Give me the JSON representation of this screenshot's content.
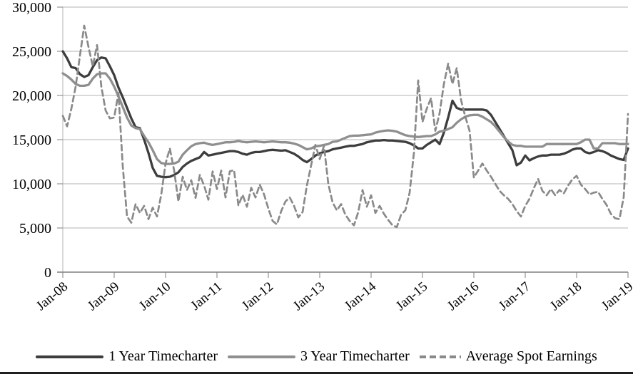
{
  "chart_data": {
    "type": "line",
    "title": "",
    "frequency": "monthly",
    "x_start_label": "Jan-08",
    "x_end_label": "Jan-19",
    "x_labels": [
      "Jan-08",
      "Jan-09",
      "Jan-10",
      "Jan-11",
      "Jan-12",
      "Jan-13",
      "Jan-14",
      "Jan-15",
      "Jan-16",
      "Jan-17",
      "Jan-18",
      "Jan-19"
    ],
    "y_tick_labels": [
      "30,000",
      "25,000",
      "20,000",
      "15,000",
      "10,000",
      "5,000",
      "0"
    ],
    "ylim": [
      0,
      30000
    ],
    "grid": true,
    "legend_position": "bottom",
    "colors": {
      "grid": "#b3b3b3",
      "axis": "#7f7f7f",
      "series_1y": "#3d3d3d",
      "series_3y": "#8f8f8f",
      "series_spot": "#8a8a8a"
    },
    "series": [
      {
        "name": "1 Year Timecharter",
        "style": "solid",
        "color": "#3d3d3d",
        "values": [
          25000,
          24200,
          23200,
          23100,
          22400,
          22100,
          22300,
          23200,
          24000,
          24300,
          24200,
          23300,
          22300,
          20900,
          19800,
          18600,
          17400,
          16400,
          16300,
          15000,
          13500,
          11800,
          10900,
          10800,
          10750,
          10800,
          11000,
          11300,
          11900,
          12300,
          12600,
          12800,
          13000,
          13600,
          13200,
          13300,
          13400,
          13500,
          13600,
          13700,
          13700,
          13600,
          13400,
          13300,
          13500,
          13600,
          13600,
          13700,
          13800,
          13850,
          13800,
          13750,
          13800,
          13600,
          13400,
          13100,
          12700,
          12450,
          12800,
          13200,
          13450,
          13600,
          13700,
          13900,
          14000,
          14100,
          14200,
          14300,
          14300,
          14400,
          14500,
          14700,
          14800,
          14900,
          14900,
          14950,
          14900,
          14900,
          14850,
          14800,
          14750,
          14600,
          14350,
          14000,
          14000,
          14400,
          14700,
          15000,
          14500,
          15800,
          17500,
          19400,
          18600,
          18400,
          18400,
          18400,
          18400,
          18400,
          18400,
          18300,
          17800,
          17000,
          16200,
          15400,
          14600,
          13800,
          12100,
          12400,
          13200,
          12650,
          12900,
          13100,
          13200,
          13200,
          13300,
          13300,
          13300,
          13400,
          13600,
          13870,
          14000,
          14000,
          13600,
          13450,
          13600,
          13800,
          13700,
          13500,
          13200,
          13000,
          12800,
          12700,
          14000
        ]
      },
      {
        "name": "3 Year Timecharter",
        "style": "solid",
        "color": "#8f8f8f",
        "values": [
          22500,
          22200,
          21800,
          21300,
          21100,
          21100,
          21200,
          21900,
          22400,
          22500,
          22500,
          21900,
          21000,
          19900,
          18700,
          17500,
          16600,
          16300,
          16200,
          15400,
          14700,
          13800,
          12800,
          12350,
          12250,
          12250,
          12300,
          12500,
          13300,
          13800,
          14250,
          14500,
          14600,
          14650,
          14500,
          14400,
          14500,
          14600,
          14700,
          14700,
          14750,
          14850,
          14750,
          14700,
          14750,
          14800,
          14750,
          14700,
          14750,
          14800,
          14750,
          14700,
          14700,
          14650,
          14550,
          14400,
          14150,
          13900,
          14000,
          14250,
          14300,
          14400,
          14500,
          14750,
          14800,
          15000,
          15200,
          15400,
          15450,
          15450,
          15500,
          15550,
          15600,
          15800,
          15900,
          16000,
          16050,
          16000,
          15900,
          15700,
          15500,
          15400,
          15350,
          15300,
          15350,
          15400,
          15400,
          15600,
          15900,
          16000,
          16200,
          16400,
          16900,
          17300,
          17600,
          17750,
          17800,
          17800,
          17600,
          17300,
          17000,
          16500,
          15900,
          15300,
          14800,
          14400,
          14300,
          14300,
          14200,
          14200,
          14200,
          14200,
          14200,
          14500,
          14500,
          14500,
          14500,
          14500,
          14500,
          14500,
          14500,
          14700,
          15000,
          15000,
          14000,
          14000,
          14600,
          14600,
          14600,
          14600,
          14500,
          14500,
          14500
        ]
      },
      {
        "name": "Average Spot Earnings",
        "style": "dashed",
        "color": "#8a8a8a",
        "values": [
          17700,
          16500,
          18500,
          21000,
          24500,
          27900,
          25500,
          23300,
          25700,
          21000,
          18300,
          17400,
          17500,
          20300,
          12000,
          6300,
          5600,
          7700,
          6700,
          7500,
          6000,
          7300,
          6300,
          8800,
          12300,
          14000,
          11500,
          8000,
          10800,
          9300,
          10400,
          8400,
          11000,
          9800,
          8200,
          11400,
          9400,
          11500,
          8450,
          11400,
          11550,
          7550,
          8750,
          7400,
          9550,
          8450,
          9900,
          8800,
          7200,
          5800,
          5400,
          6900,
          8000,
          8450,
          7500,
          6200,
          6800,
          9800,
          12100,
          14400,
          12800,
          14300,
          10000,
          7900,
          7000,
          7700,
          6500,
          5800,
          5300,
          6800,
          9300,
          7400,
          8700,
          6700,
          7500,
          6600,
          5900,
          5300,
          5100,
          6500,
          7000,
          9000,
          13500,
          21700,
          17000,
          18500,
          19700,
          16000,
          18000,
          21300,
          23600,
          21300,
          23100,
          19500,
          17600,
          16000,
          10700,
          11500,
          12300,
          11500,
          10800,
          10000,
          9200,
          8700,
          8300,
          7700,
          6900,
          6300,
          7500,
          8300,
          9500,
          10550,
          9200,
          8700,
          9400,
          8700,
          9300,
          8900,
          9800,
          10500,
          10900,
          9900,
          9400,
          8800,
          9000,
          9100,
          8300,
          7600,
          6600,
          6100,
          6000,
          8500,
          17900
        ]
      }
    ]
  },
  "legend": {
    "items": [
      {
        "label": "1 Year Timecharter"
      },
      {
        "label": "3 Year Timecharter"
      },
      {
        "label": "Average Spot Earnings"
      }
    ]
  }
}
